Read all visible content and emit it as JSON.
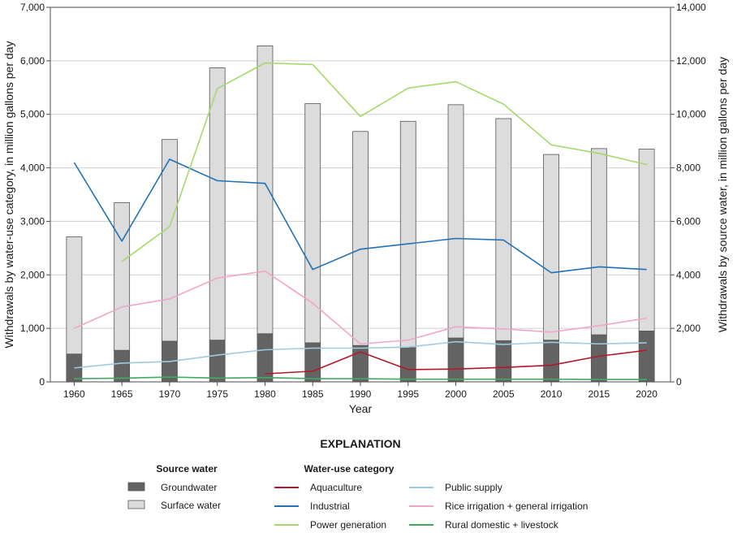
{
  "chart_data": {
    "type": "bar",
    "xlabel": "Year",
    "ylabel_left": "Withdrawals by water-use category, in million gallons per day",
    "ylabel_right": "Withdrawals by source water, in million gallons per day",
    "categories": [
      "1960",
      "1965",
      "1970",
      "1975",
      "1980",
      "1985",
      "1990",
      "1995",
      "2000",
      "2005",
      "2010",
      "2015",
      "2020"
    ],
    "ylim_left": [
      0,
      7000
    ],
    "yticks_left": [
      0,
      1000,
      2000,
      3000,
      4000,
      5000,
      6000,
      7000
    ],
    "ytick_labels_left": [
      "0",
      "1,000",
      "2,000",
      "3,000",
      "4,000",
      "5,000",
      "6,000",
      "7,000"
    ],
    "ylim_right": [
      0,
      14000
    ],
    "yticks_right": [
      0,
      2000,
      4000,
      6000,
      8000,
      10000,
      12000,
      14000
    ],
    "ytick_labels_right": [
      "0",
      "2,000",
      "4,000",
      "6,000",
      "8,000",
      "10,000",
      "12,000",
      "14,000"
    ],
    "grid": "horizontal",
    "bar_series": [
      {
        "name": "Groundwater",
        "axis": "left",
        "color": "#636363",
        "values": [
          520,
          590,
          760,
          780,
          900,
          730,
          680,
          640,
          820,
          770,
          780,
          880,
          950
        ]
      },
      {
        "name": "Surface water",
        "axis": "left",
        "color": "#dcdcdc",
        "values": [
          2190,
          2760,
          3770,
          5090,
          5380,
          4470,
          4000,
          4230,
          4360,
          4150,
          3470,
          3480,
          3400
        ]
      }
    ],
    "line_series": [
      {
        "name": "Aquaculture",
        "axis": "left",
        "color": "#b2182b",
        "values": [
          null,
          null,
          null,
          null,
          150,
          200,
          560,
          230,
          240,
          270,
          310,
          480,
          590
        ]
      },
      {
        "name": "Industrial",
        "axis": "left",
        "color": "#2171b5",
        "values": [
          4100,
          2630,
          4160,
          3760,
          3710,
          2100,
          2480,
          2580,
          2680,
          2650,
          2040,
          2150,
          2100
        ]
      },
      {
        "name": "Power generation",
        "axis": "left",
        "color": "#a6d96a",
        "values": [
          null,
          2250,
          2900,
          5480,
          5960,
          5930,
          4960,
          5490,
          5610,
          5190,
          4430,
          4270,
          4060
        ]
      },
      {
        "name": "Public supply",
        "axis": "left",
        "color": "#9ecae1",
        "values": [
          260,
          350,
          380,
          500,
          600,
          630,
          630,
          650,
          750,
          700,
          740,
          710,
          730
        ]
      },
      {
        "name": "Rice irrigation + general irrigation",
        "axis": "left",
        "color": "#f2a5c9",
        "values": [
          1000,
          1400,
          1550,
          1940,
          2070,
          1470,
          710,
          780,
          1030,
          990,
          930,
          1050,
          1190
        ]
      },
      {
        "name": "Rural domestic + livestock",
        "axis": "left",
        "color": "#41ab5d",
        "values": [
          60,
          70,
          90,
          70,
          80,
          60,
          60,
          50,
          50,
          50,
          50,
          45,
          45
        ]
      }
    ]
  },
  "legend": {
    "title": "EXPLANATION",
    "source_heading": "Source water",
    "category_heading": "Water-use category",
    "source_items": [
      {
        "label": "Groundwater",
        "color": "#636363"
      },
      {
        "label": "Surface water",
        "color": "#dcdcdc"
      }
    ],
    "category_items": [
      {
        "label": "Aquaculture",
        "color": "#b2182b"
      },
      {
        "label": "Industrial",
        "color": "#2171b5"
      },
      {
        "label": "Power generation",
        "color": "#a6d96a"
      },
      {
        "label": "Public supply",
        "color": "#9ecae1"
      },
      {
        "label": "Rice irrigation + general irrigation",
        "color": "#f2a5c9"
      },
      {
        "label": "Rural domestic + livestock",
        "color": "#41ab5d"
      }
    ]
  }
}
